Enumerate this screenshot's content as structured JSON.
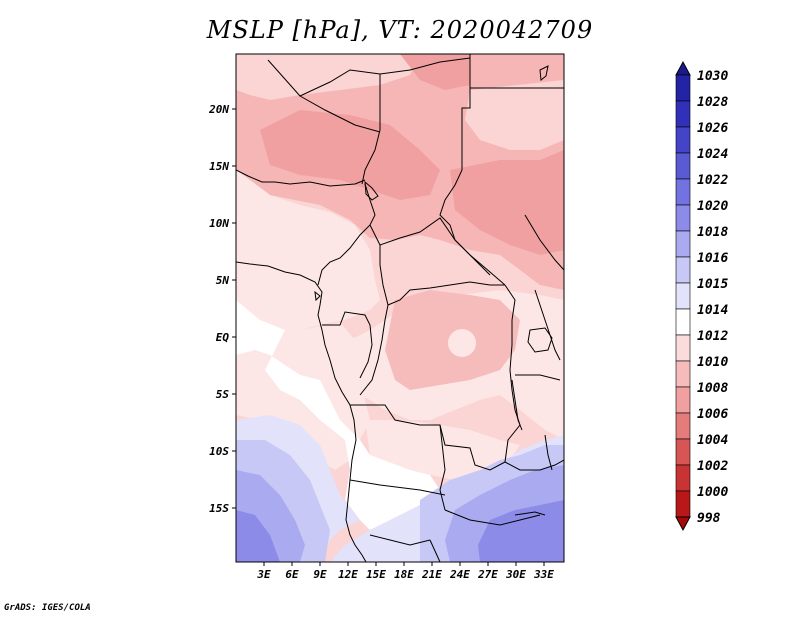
{
  "title": "MSLP [hPa], VT: 2020042709",
  "footer": "GrADS: IGES/COLA",
  "map": {
    "variable": "MSLP",
    "units": "hPa",
    "valid_time": "2020042709",
    "lon_range": [
      0,
      35
    ],
    "lat_range": [
      -20,
      25
    ],
    "lat_ticks": [
      "20N",
      "15N",
      "10N",
      "5N",
      "EQ",
      "5S",
      "10S",
      "15S"
    ],
    "lon_ticks": [
      "3E",
      "6E",
      "9E",
      "12E",
      "15E",
      "18E",
      "21E",
      "24E",
      "27E",
      "30E",
      "33E"
    ]
  },
  "colorbar": {
    "levels": [
      "1030",
      "1028",
      "1026",
      "1024",
      "1022",
      "1020",
      "1018",
      "1016",
      "1015",
      "1014",
      "1012",
      "1010",
      "1008",
      "1006",
      "1004",
      "1002",
      "1000",
      "998"
    ],
    "colors": [
      "#1a1a8c",
      "#2323a6",
      "#3030b8",
      "#4444c8",
      "#5a5ad4",
      "#7272e0",
      "#8c8ce8",
      "#aaaaf0",
      "#c8c8f6",
      "#e2e2fa",
      "#ffffff",
      "#fbdcdc",
      "#f6bcbc",
      "#f0a0a0",
      "#e47c7c",
      "#d65656",
      "#c83434",
      "#b81818",
      "#a80a0a"
    ]
  },
  "colors": {
    "pressure_1010_1012": "#fbd4d4",
    "pressure_1008_1010": "#f6b6b6",
    "pressure_1006_1008": "#f0a0a0",
    "pressure_1012_1014": "#fde6e6",
    "pressure_1014_1015": "#ffffff",
    "pressure_1015_1016": "#e2e2fa",
    "pressure_1016_1018": "#c8c8f6",
    "pressure_1018_1020": "#aaaaf0",
    "pressure_1020_1022": "#8c8ce8"
  }
}
